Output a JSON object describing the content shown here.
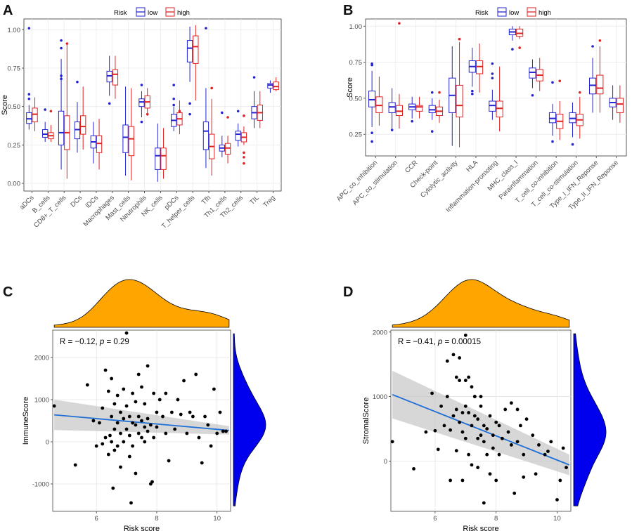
{
  "panel_letters": [
    "A",
    "B",
    "C",
    "D"
  ],
  "colors": {
    "low": "#2323d0",
    "high": "#e02020",
    "density_top": "#ffa500",
    "density_right": "#0000ee",
    "fit_line": "#1f6fd6",
    "ci_band": "#bdbdbd"
  },
  "chart_data": [
    {
      "id": "A",
      "type": "box",
      "ylabel": "Score",
      "ylim": [
        -0.05,
        1.07
      ],
      "yticks": [
        "0.00",
        "0.25",
        "0.50",
        "0.75",
        "1.00"
      ],
      "legend": {
        "title": "Risk",
        "entries": [
          "low",
          "high"
        ],
        "position": "top"
      },
      "categories": [
        "aDCs",
        "B_cells",
        "CD8+_T_cells",
        "DCs",
        "iDCs",
        "Macrophages",
        "Mast_cells",
        "Neutrophils",
        "NK_cells",
        "pDCs",
        "T_helper_cells",
        "Tfh",
        "Th1_cells",
        "Th2_cells",
        "TIL",
        "Treg"
      ],
      "series": [
        {
          "name": "low",
          "stats": [
            [
              0.35,
              0.39,
              0.42,
              0.46,
              0.51
            ],
            [
              0.27,
              0.3,
              0.32,
              0.35,
              0.4
            ],
            [
              0.09,
              0.25,
              0.33,
              0.47,
              0.81
            ],
            [
              0.2,
              0.29,
              0.35,
              0.4,
              0.53
            ],
            [
              0.13,
              0.23,
              0.27,
              0.31,
              0.4
            ],
            [
              0.57,
              0.66,
              0.7,
              0.73,
              0.83
            ],
            [
              0.05,
              0.2,
              0.3,
              0.38,
              0.63
            ],
            [
              0.43,
              0.5,
              0.53,
              0.55,
              0.6
            ],
            [
              0.01,
              0.09,
              0.18,
              0.23,
              0.39
            ],
            [
              0.34,
              0.37,
              0.41,
              0.45,
              0.5
            ],
            [
              0.66,
              0.79,
              0.88,
              0.93,
              1.02
            ],
            [
              0.1,
              0.22,
              0.34,
              0.4,
              0.62
            ],
            [
              0.17,
              0.21,
              0.23,
              0.25,
              0.31
            ],
            [
              0.24,
              0.28,
              0.32,
              0.34,
              0.39
            ],
            [
              0.36,
              0.42,
              0.46,
              0.5,
              0.6
            ],
            [
              0.59,
              0.62,
              0.64,
              0.65,
              0.67
            ]
          ],
          "outliers": [
            [
              0,
              1.01
            ],
            [
              0,
              0.58
            ],
            [
              0,
              0.55
            ],
            [
              1,
              0.48
            ],
            [
              2,
              0.93
            ],
            [
              2,
              0.88
            ],
            [
              2,
              0.7
            ],
            [
              2,
              0.68
            ],
            [
              3,
              0.66
            ],
            [
              5,
              0.52
            ],
            [
              7,
              0.64
            ],
            [
              7,
              0.4
            ],
            [
              9,
              0.64
            ],
            [
              9,
              0.55
            ],
            [
              9,
              0.51
            ],
            [
              10,
              0.52
            ],
            [
              10,
              0.45
            ],
            [
              11,
              1.01
            ],
            [
              12,
              0.46
            ],
            [
              13,
              0.47
            ],
            [
              14,
              0.69
            ]
          ]
        },
        {
          "name": "high",
          "stats": [
            [
              0.34,
              0.4,
              0.45,
              0.49,
              0.56
            ],
            [
              0.27,
              0.29,
              0.31,
              0.33,
              0.38
            ],
            [
              0.03,
              0.22,
              0.33,
              0.44,
              0.91
            ],
            [
              0.22,
              0.32,
              0.37,
              0.44,
              0.63
            ],
            [
              0.09,
              0.2,
              0.26,
              0.31,
              0.42
            ],
            [
              0.55,
              0.64,
              0.71,
              0.74,
              0.83
            ],
            [
              0.02,
              0.18,
              0.29,
              0.37,
              0.62
            ],
            [
              0.44,
              0.49,
              0.53,
              0.57,
              0.62
            ],
            [
              0.03,
              0.09,
              0.18,
              0.23,
              0.36
            ],
            [
              0.32,
              0.38,
              0.42,
              0.46,
              0.54
            ],
            [
              0.54,
              0.78,
              0.89,
              0.96,
              1.03
            ],
            [
              0.05,
              0.16,
              0.24,
              0.32,
              0.55
            ],
            [
              0.13,
              0.19,
              0.23,
              0.26,
              0.31
            ],
            [
              0.25,
              0.27,
              0.3,
              0.33,
              0.37
            ],
            [
              0.36,
              0.41,
              0.46,
              0.51,
              0.6
            ],
            [
              0.6,
              0.61,
              0.63,
              0.66,
              0.69
            ]
          ],
          "outliers": [
            [
              1,
              0.47
            ],
            [
              2,
              0.91
            ],
            [
              7,
              0.45
            ],
            [
              9,
              0.47
            ],
            [
              11,
              0.62
            ],
            [
              12,
              0.43
            ],
            [
              13,
              0.44
            ],
            [
              13,
              0.2
            ],
            [
              13,
              0.17
            ],
            [
              13,
              0.13
            ]
          ]
        }
      ]
    },
    {
      "id": "B",
      "type": "box",
      "ylabel": "Score",
      "ylim": [
        0.1,
        1.05
      ],
      "yticks": [
        "0.25",
        "0.50",
        "0.75",
        "1.00"
      ],
      "legend": {
        "title": "Risk",
        "entries": [
          "low",
          "high"
        ],
        "position": "top"
      },
      "categories": [
        "APC_co_inhibition",
        "APC_co_stimulation",
        "CCR",
        "Check-point",
        "Cytolytic_activity",
        "HLA",
        "Inflammation-promoting",
        "MHC_class_I",
        "Parainflammation",
        "T_cell_co-inhibition",
        "T_cell_co-stimulation",
        "Type_I_IFN_Reponse",
        "Type_II_IFN_Reponse"
      ],
      "series": [
        {
          "name": "low",
          "stats": [
            [
              0.3,
              0.44,
              0.49,
              0.55,
              0.69
            ],
            [
              0.29,
              0.4,
              0.44,
              0.47,
              0.57
            ],
            [
              0.36,
              0.42,
              0.44,
              0.46,
              0.51
            ],
            [
              0.35,
              0.4,
              0.42,
              0.45,
              0.5
            ],
            [
              0.17,
              0.4,
              0.52,
              0.64,
              0.86
            ],
            [
              0.58,
              0.68,
              0.72,
              0.76,
              0.85
            ],
            [
              0.35,
              0.41,
              0.45,
              0.48,
              0.56
            ],
            [
              0.9,
              0.94,
              0.96,
              0.98,
              1.0
            ],
            [
              0.57,
              0.64,
              0.68,
              0.71,
              0.77
            ],
            [
              0.24,
              0.33,
              0.36,
              0.4,
              0.46
            ],
            [
              0.23,
              0.33,
              0.36,
              0.4,
              0.47
            ],
            [
              0.4,
              0.53,
              0.59,
              0.64,
              0.78
            ],
            [
              0.35,
              0.44,
              0.47,
              0.5,
              0.59
            ]
          ],
          "outliers": [
            [
              0,
              0.74
            ],
            [
              0,
              0.73
            ],
            [
              0,
              0.26
            ],
            [
              0,
              0.2
            ],
            [
              1,
              0.28
            ],
            [
              2,
              0.34
            ],
            [
              3,
              0.54
            ],
            [
              3,
              0.27
            ],
            [
              5,
              0.55
            ],
            [
              5,
              0.53
            ],
            [
              6,
              0.74
            ],
            [
              6,
              0.67
            ],
            [
              6,
              0.64
            ],
            [
              7,
              0.84
            ],
            [
              8,
              0.52
            ],
            [
              9,
              0.61
            ],
            [
              9,
              0.2
            ],
            [
              10,
              0.18
            ],
            [
              11,
              0.86
            ]
          ]
        },
        {
          "name": "high",
          "stats": [
            [
              0.31,
              0.4,
              0.45,
              0.51,
              0.65
            ],
            [
              0.29,
              0.38,
              0.41,
              0.45,
              0.53
            ],
            [
              0.36,
              0.41,
              0.44,
              0.45,
              0.51
            ],
            [
              0.33,
              0.38,
              0.41,
              0.44,
              0.49
            ],
            [
              0.16,
              0.37,
              0.45,
              0.59,
              0.89
            ],
            [
              0.54,
              0.67,
              0.72,
              0.76,
              0.88
            ],
            [
              0.27,
              0.37,
              0.43,
              0.48,
              0.72
            ],
            [
              0.91,
              0.93,
              0.95,
              0.98,
              1.0
            ],
            [
              0.55,
              0.62,
              0.66,
              0.7,
              0.78
            ],
            [
              0.21,
              0.29,
              0.34,
              0.39,
              0.48
            ],
            [
              0.22,
              0.31,
              0.35,
              0.39,
              0.51
            ],
            [
              0.4,
              0.53,
              0.57,
              0.66,
              0.86
            ],
            [
              0.33,
              0.4,
              0.46,
              0.5,
              0.59
            ]
          ],
          "outliers": [
            [
              1,
              1.02
            ],
            [
              3,
              0.54
            ],
            [
              4,
              0.91
            ],
            [
              7,
              0.85
            ],
            [
              9,
              0.62
            ],
            [
              10,
              0.54
            ],
            [
              11,
              0.9
            ]
          ]
        }
      ]
    },
    {
      "id": "C",
      "type": "scatter",
      "xlabel": "Risk score",
      "ylabel": "ImmuneScore",
      "xlim": [
        4.55,
        10.45
      ],
      "ylim": [
        -1650,
        2650
      ],
      "xticks": [
        6,
        8,
        10
      ],
      "yticks": [
        -1000,
        0,
        1000,
        2000
      ],
      "annotation": {
        "lhs": "R = −0.12, ",
        "p_label": "p",
        "rhs": " = 0.29"
      },
      "fit": {
        "x": [
          4.6,
          10.4
        ],
        "y": [
          640,
          270
        ],
        "ci_low": [
          280,
          170
        ],
        "ci_high": [
          1000,
          370
        ]
      },
      "x": [
        4.6,
        5.3,
        5.7,
        5.9,
        6.0,
        6.1,
        6.2,
        6.2,
        6.3,
        6.3,
        6.4,
        6.4,
        6.5,
        6.5,
        6.5,
        6.6,
        6.6,
        6.6,
        6.7,
        6.7,
        6.7,
        6.8,
        6.8,
        6.8,
        6.9,
        6.9,
        6.9,
        7.0,
        7.0,
        7.0,
        7.1,
        7.1,
        7.1,
        7.2,
        7.2,
        7.2,
        7.3,
        7.3,
        7.3,
        7.4,
        7.4,
        7.4,
        7.5,
        7.5,
        7.5,
        7.6,
        7.6,
        7.6,
        7.7,
        7.7,
        7.7,
        7.8,
        7.8,
        7.9,
        7.9,
        8.0,
        8.0,
        8.1,
        8.2,
        8.3,
        8.4,
        8.5,
        8.6,
        8.7,
        8.8,
        8.9,
        9.0,
        9.1,
        9.2,
        9.3,
        9.4,
        9.5,
        9.6,
        9.7,
        9.8,
        9.9,
        10.0,
        10.1,
        10.2,
        10.3,
        6.55,
        7.85,
        7.15,
        8.3,
        6.45
      ],
      "y": [
        850,
        -550,
        1350,
        500,
        -100,
        450,
        800,
        -50,
        1700,
        100,
        1200,
        -300,
        600,
        0,
        1500,
        900,
        300,
        -200,
        1100,
        450,
        -100,
        700,
        200,
        -600,
        1250,
        550,
        0,
        2580,
        850,
        300,
        600,
        150,
        -350,
        1150,
        450,
        -100,
        950,
        400,
        -750,
        1600,
        600,
        200,
        1300,
        500,
        100,
        900,
        350,
        0,
        1800,
        550,
        250,
        -1000,
        400,
        1150,
        100,
        700,
        350,
        1000,
        600,
        200,
        -450,
        700,
        300,
        1000,
        650,
        1450,
        200,
        700,
        600,
        1600,
        100,
        -500,
        600,
        400,
        -100,
        1250,
        200,
        700,
        250,
        250,
        -1100,
        -950,
        -1450,
        1150,
        150
      ]
    },
    {
      "id": "D",
      "type": "scatter",
      "xlabel": "Risk score",
      "ylabel": "StromalScore",
      "xlim": [
        4.55,
        10.45
      ],
      "ylim": [
        -780,
        2030
      ],
      "xticks": [
        6,
        8,
        10
      ],
      "yticks": [
        0,
        1000,
        2000
      ],
      "annotation": {
        "lhs": "R = −0.41, ",
        "p_label": "p",
        "rhs": " = 0.00015"
      },
      "fit": {
        "x": [
          4.6,
          10.4
        ],
        "y": [
          1030,
          -60
        ],
        "ci_low": [
          660,
          -220
        ],
        "ci_high": [
          1400,
          100
        ]
      },
      "x": [
        4.6,
        5.3,
        5.7,
        5.9,
        6.0,
        6.1,
        6.2,
        6.3,
        6.4,
        6.5,
        6.5,
        6.6,
        6.6,
        6.7,
        6.7,
        6.7,
        6.8,
        6.8,
        6.9,
        6.9,
        6.9,
        7.0,
        7.0,
        7.0,
        7.1,
        7.1,
        7.1,
        7.2,
        7.2,
        7.2,
        7.3,
        7.3,
        7.4,
        7.4,
        7.4,
        7.5,
        7.5,
        7.5,
        7.6,
        7.6,
        7.7,
        7.7,
        7.8,
        7.8,
        7.9,
        7.9,
        8.0,
        8.0,
        8.1,
        8.2,
        8.3,
        8.4,
        8.5,
        8.6,
        8.7,
        8.8,
        8.9,
        9.0,
        9.2,
        9.4,
        9.6,
        9.8,
        10.0,
        10.2,
        10.3,
        6.8,
        7.3,
        7.6,
        8.1,
        8.5,
        8.7,
        8.9,
        9.3,
        9.7,
        10.1,
        6.4,
        7.0
      ],
      "y": [
        300,
        -120,
        450,
        1050,
        470,
        180,
        850,
        550,
        1000,
        480,
        -300,
        1650,
        700,
        1300,
        800,
        160,
        1250,
        600,
        750,
        -300,
        450,
        1950,
        850,
        350,
        1300,
        750,
        100,
        1150,
        550,
        -60,
        1000,
        700,
        650,
        350,
        -100,
        1000,
        400,
        850,
        550,
        300,
        500,
        100,
        -200,
        700,
        400,
        200,
        -300,
        600,
        550,
        350,
        800,
        450,
        250,
        -500,
        300,
        550,
        100,
        650,
        400,
        250,
        100,
        300,
        -600,
        200,
        -100,
        1600,
        1000,
        -650,
        100,
        900,
        800,
        -250,
        -200,
        150,
        -300,
        1550,
        1250
      ]
    }
  ]
}
